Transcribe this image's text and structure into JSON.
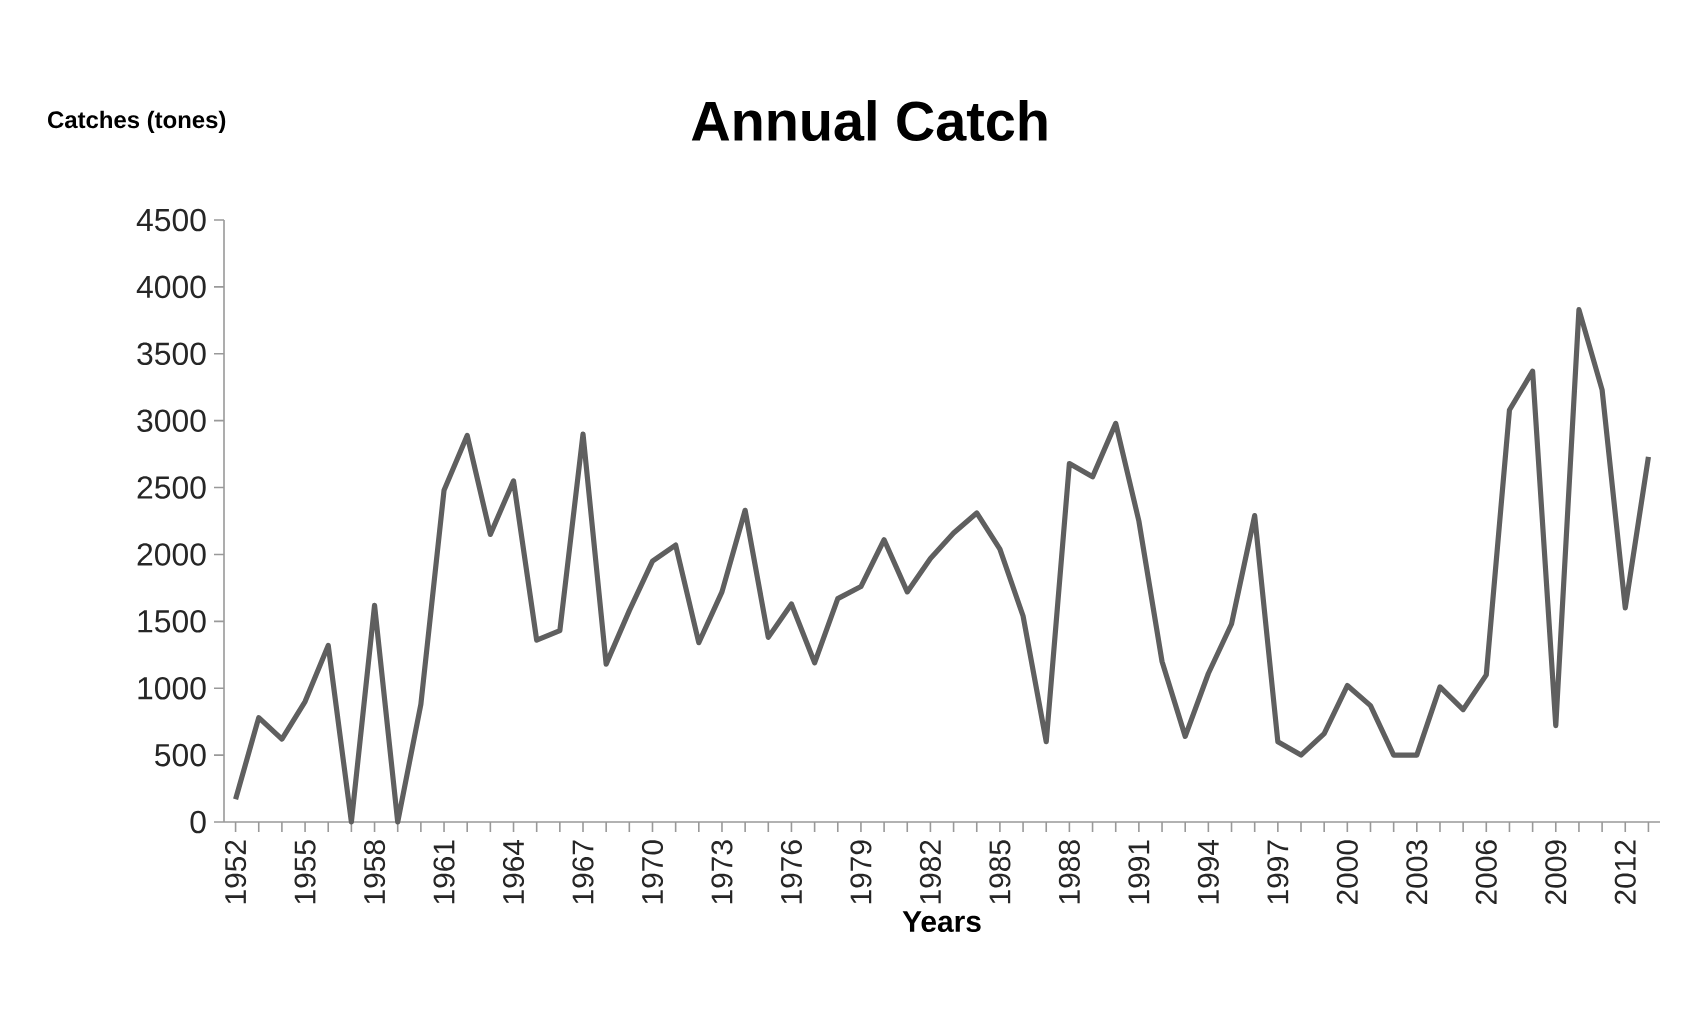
{
  "chart_data": {
    "type": "line",
    "title": "Annual Catch",
    "xlabel": "Years",
    "ylabel": "Catches (tones)",
    "categories": [
      "1952",
      null,
      null,
      "1955",
      null,
      null,
      "1958",
      null,
      null,
      "1961",
      null,
      null,
      "1964",
      null,
      null,
      "1967",
      null,
      null,
      "1970",
      null,
      null,
      "1973",
      null,
      null,
      "1976",
      null,
      null,
      "1979",
      null,
      null,
      "1982",
      null,
      null,
      "1985",
      null,
      null,
      "1988",
      null,
      null,
      "1991",
      null,
      null,
      "1994",
      null,
      null,
      "1997",
      null,
      null,
      "2000",
      null,
      null,
      "2003",
      null,
      null,
      "2006",
      null,
      null,
      "2009",
      null,
      null,
      "2012",
      null
    ],
    "series": [
      {
        "color": "#5f5f5f",
        "values": [
          170,
          780,
          620,
          900,
          1320,
          0,
          1620,
          0,
          880,
          2480,
          2890,
          2150,
          2550,
          1360,
          1430,
          2900,
          1180,
          1580,
          1950,
          2070,
          1340,
          1720,
          2330,
          1380,
          1630,
          1190,
          1670,
          1760,
          2110,
          1720,
          1970,
          2160,
          2310,
          2040,
          1540,
          600,
          2680,
          2580,
          2980,
          2250,
          1200,
          640,
          1110,
          1480,
          2290,
          600,
          500,
          660,
          1020,
          870,
          500,
          500,
          1010,
          840,
          1100,
          3080,
          3370,
          720,
          3830,
          3230,
          1600,
          2730
        ]
      }
    ],
    "ylim": [
      0,
      4500
    ],
    "yticks": [
      0,
      500,
      1000,
      1500,
      2000,
      2500,
      3000,
      3500,
      4000,
      4500
    ]
  }
}
